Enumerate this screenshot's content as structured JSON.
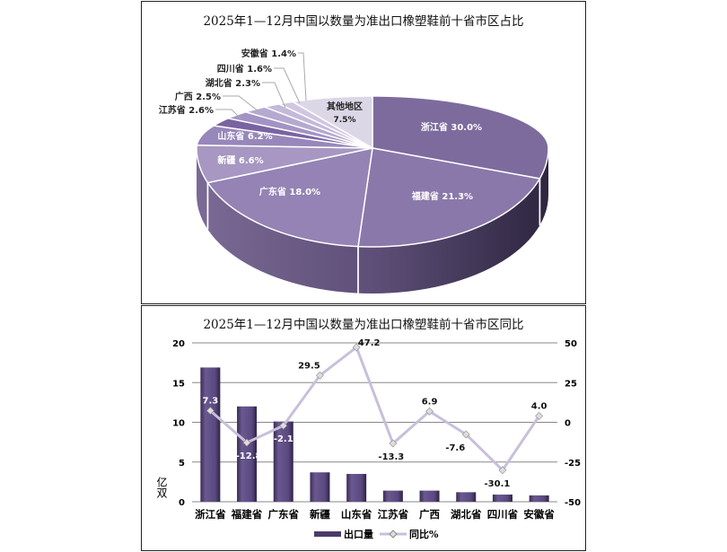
{
  "chart_data": [
    {
      "type": "pie",
      "title": "2025年1—12月中国以数量为准出口橡塑鞋前十省市区占比",
      "slices": [
        {
          "name": "浙江省",
          "value": 30.0,
          "label": "浙江省 30.0%",
          "color": "#7d6b9d"
        },
        {
          "name": "福建省",
          "value": 21.3,
          "label": "福建省 21.3%",
          "color": "#8a78aa"
        },
        {
          "name": "广东省",
          "value": 18.0,
          "label": "广东省 18.0%",
          "color": "#9483b4"
        },
        {
          "name": "新疆",
          "value": 6.6,
          "label": "新疆 6.6%",
          "color": "#a797c2"
        },
        {
          "name": "山东省",
          "value": 6.2,
          "label": "山东省 6.2%",
          "color": "#9787ba"
        },
        {
          "name": "江苏省",
          "value": 2.6,
          "label": "江苏省 2.6%",
          "color": "#7a63a2"
        },
        {
          "name": "广西",
          "value": 2.5,
          "label": "广西 2.5%",
          "color": "#a393c4"
        },
        {
          "name": "湖北省",
          "value": 2.3,
          "label": "湖北省 2.3%",
          "color": "#b5a9cf"
        },
        {
          "name": "四川省",
          "value": 1.6,
          "label": "四川省 1.6%",
          "color": "#c4b9da"
        },
        {
          "name": "安徽省",
          "value": 1.4,
          "label": "安徽省 1.4%",
          "color": "#cfc7e1"
        },
        {
          "name": "其他地区",
          "value": 7.5,
          "label": "其他地区",
          "label2": "7.5%",
          "color": "#dcd7e7"
        }
      ]
    },
    {
      "type": "bar+line",
      "title": "2025年1—12月中国以数量为准出口橡塑鞋前十省市区同比",
      "categories": [
        "浙江省",
        "福建省",
        "广东省",
        "新疆",
        "山东省",
        "江苏省",
        "广西",
        "湖北省",
        "四川省",
        "安徽省"
      ],
      "series": [
        {
          "name": "出口量",
          "type": "bar",
          "axis": "left",
          "values": [
            16.9,
            12.0,
            10.1,
            3.7,
            3.5,
            1.4,
            1.4,
            1.2,
            0.9,
            0.8
          ],
          "color": "#4b3b6a"
        },
        {
          "name": "同比%",
          "type": "line",
          "axis": "right",
          "values": [
            7.3,
            -12.8,
            -2.1,
            29.5,
            47.2,
            -13.3,
            6.9,
            -7.6,
            -30.1,
            4.0
          ],
          "labels": [
            "7.3",
            "-12.8",
            "-2.1",
            "29.5",
            "47.2",
            "-13.3",
            "6.9",
            "-7.6",
            "-30.1",
            "4.0"
          ],
          "color": "#c9bfdb"
        }
      ],
      "ylabel": "亿双",
      "ylim": [
        0,
        20
      ],
      "yticks": [
        "0",
        "5",
        "10",
        "15",
        "20"
      ],
      "y2lim": [
        -50,
        50
      ],
      "y2ticks": [
        "-50",
        "-25",
        "0",
        "25",
        "50"
      ],
      "grid": true,
      "legend": "bottom"
    }
  ]
}
